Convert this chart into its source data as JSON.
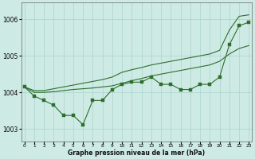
{
  "x": [
    0,
    1,
    2,
    3,
    4,
    5,
    6,
    7,
    8,
    9,
    10,
    11,
    12,
    13,
    14,
    15,
    16,
    17,
    18,
    19,
    20,
    21,
    22,
    23
  ],
  "line_main": [
    1004.15,
    1003.9,
    1003.78,
    1003.65,
    1003.37,
    1003.37,
    1003.12,
    1003.78,
    1003.78,
    1004.08,
    1004.22,
    1004.28,
    1004.28,
    1004.42,
    1004.22,
    1004.22,
    1004.08,
    1004.08,
    1004.22,
    1004.22,
    1004.42,
    1005.3,
    1005.82,
    1005.92
  ],
  "line_upper": [
    1004.15,
    1004.05,
    1004.05,
    1004.1,
    1004.15,
    1004.2,
    1004.25,
    1004.3,
    1004.35,
    1004.42,
    1004.55,
    1004.62,
    1004.68,
    1004.75,
    1004.8,
    1004.85,
    1004.9,
    1004.95,
    1005.0,
    1005.05,
    1005.15,
    1005.7,
    1006.08,
    1006.12
  ],
  "line_lower": [
    1004.15,
    1004.0,
    1004.0,
    1004.02,
    1004.05,
    1004.08,
    1004.1,
    1004.12,
    1004.15,
    1004.18,
    1004.25,
    1004.32,
    1004.38,
    1004.45,
    1004.5,
    1004.55,
    1004.6,
    1004.65,
    1004.7,
    1004.75,
    1004.85,
    1005.05,
    1005.2,
    1005.28
  ],
  "bg_color": "#ceeae4",
  "line_color": "#2d6e2d",
  "grid_color": "#aad4cc",
  "ylabel_ticks": [
    1003,
    1004,
    1005,
    1006
  ],
  "xlim": [
    -0.3,
    23.3
  ],
  "ylim": [
    1002.65,
    1006.45
  ],
  "xlabel": "Graphe pression niveau de la mer (hPa)",
  "xticks": [
    0,
    1,
    2,
    3,
    4,
    5,
    6,
    7,
    8,
    9,
    10,
    11,
    12,
    13,
    14,
    15,
    16,
    17,
    18,
    19,
    20,
    21,
    22,
    23
  ]
}
